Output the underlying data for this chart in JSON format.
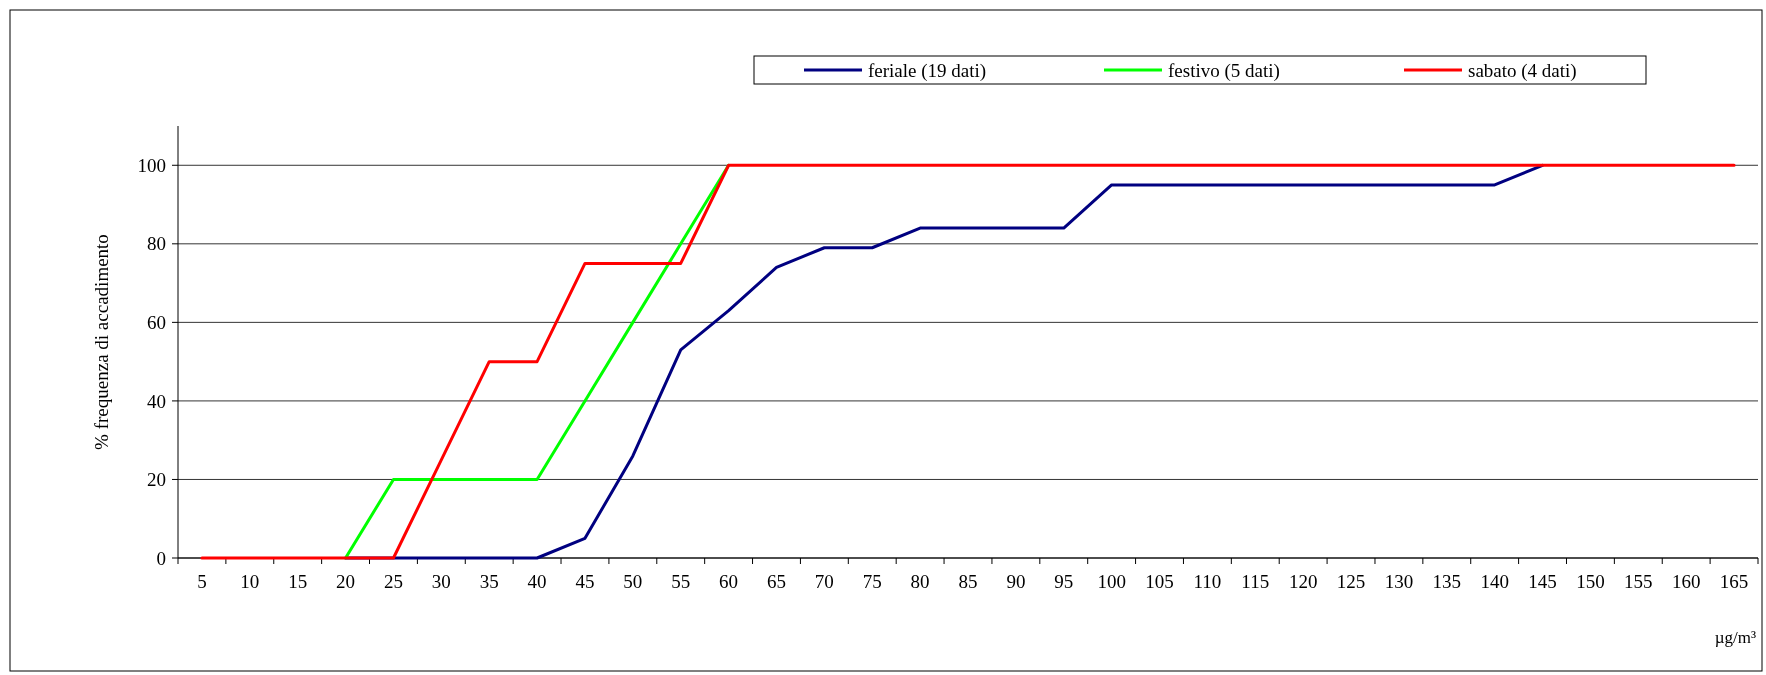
{
  "chart_data": {
    "type": "line",
    "ylabel": "% frequenza di accadimento",
    "xlabel": "µg/m³",
    "categories": [
      "5",
      "10",
      "15",
      "20",
      "25",
      "30",
      "35",
      "40",
      "45",
      "50",
      "55",
      "60",
      "65",
      "70",
      "75",
      "80",
      "85",
      "90",
      "95",
      "100",
      "105",
      "110",
      "115",
      "120",
      "125",
      "130",
      "135",
      "140",
      "145",
      "150",
      "155",
      "160",
      "165"
    ],
    "series": [
      {
        "name": "feriale (19 dati)",
        "color": "#000080",
        "values": [
          null,
          null,
          null,
          0,
          0,
          0,
          0,
          0,
          5,
          26,
          53,
          63,
          74,
          79,
          79,
          84,
          84,
          84,
          84,
          95,
          95,
          95,
          95,
          95,
          95,
          95,
          95,
          95,
          100,
          null,
          null,
          null,
          null
        ]
      },
      {
        "name": "festivo (5 dati)",
        "color": "#00ff00",
        "values": [
          null,
          null,
          null,
          0,
          20,
          20,
          20,
          20,
          40,
          60,
          80,
          100,
          null,
          null,
          null,
          null,
          null,
          null,
          null,
          null,
          null,
          null,
          null,
          null,
          null,
          null,
          null,
          null,
          null,
          null,
          null,
          null,
          null
        ]
      },
      {
        "name": "sabato (4 dati)",
        "color": "#ff0000",
        "values": [
          0,
          0,
          0,
          0,
          0,
          25,
          50,
          50,
          75,
          75,
          75,
          100,
          100,
          100,
          100,
          100,
          100,
          100,
          100,
          100,
          100,
          100,
          100,
          100,
          100,
          100,
          100,
          100,
          100,
          100,
          100,
          100,
          100
        ]
      }
    ],
    "ylim": [
      0,
      110
    ],
    "yticks": [
      0,
      20,
      40,
      60,
      80,
      100
    ],
    "grid": "y",
    "legend": "top",
    "marker": "none",
    "line_style": "solid"
  }
}
